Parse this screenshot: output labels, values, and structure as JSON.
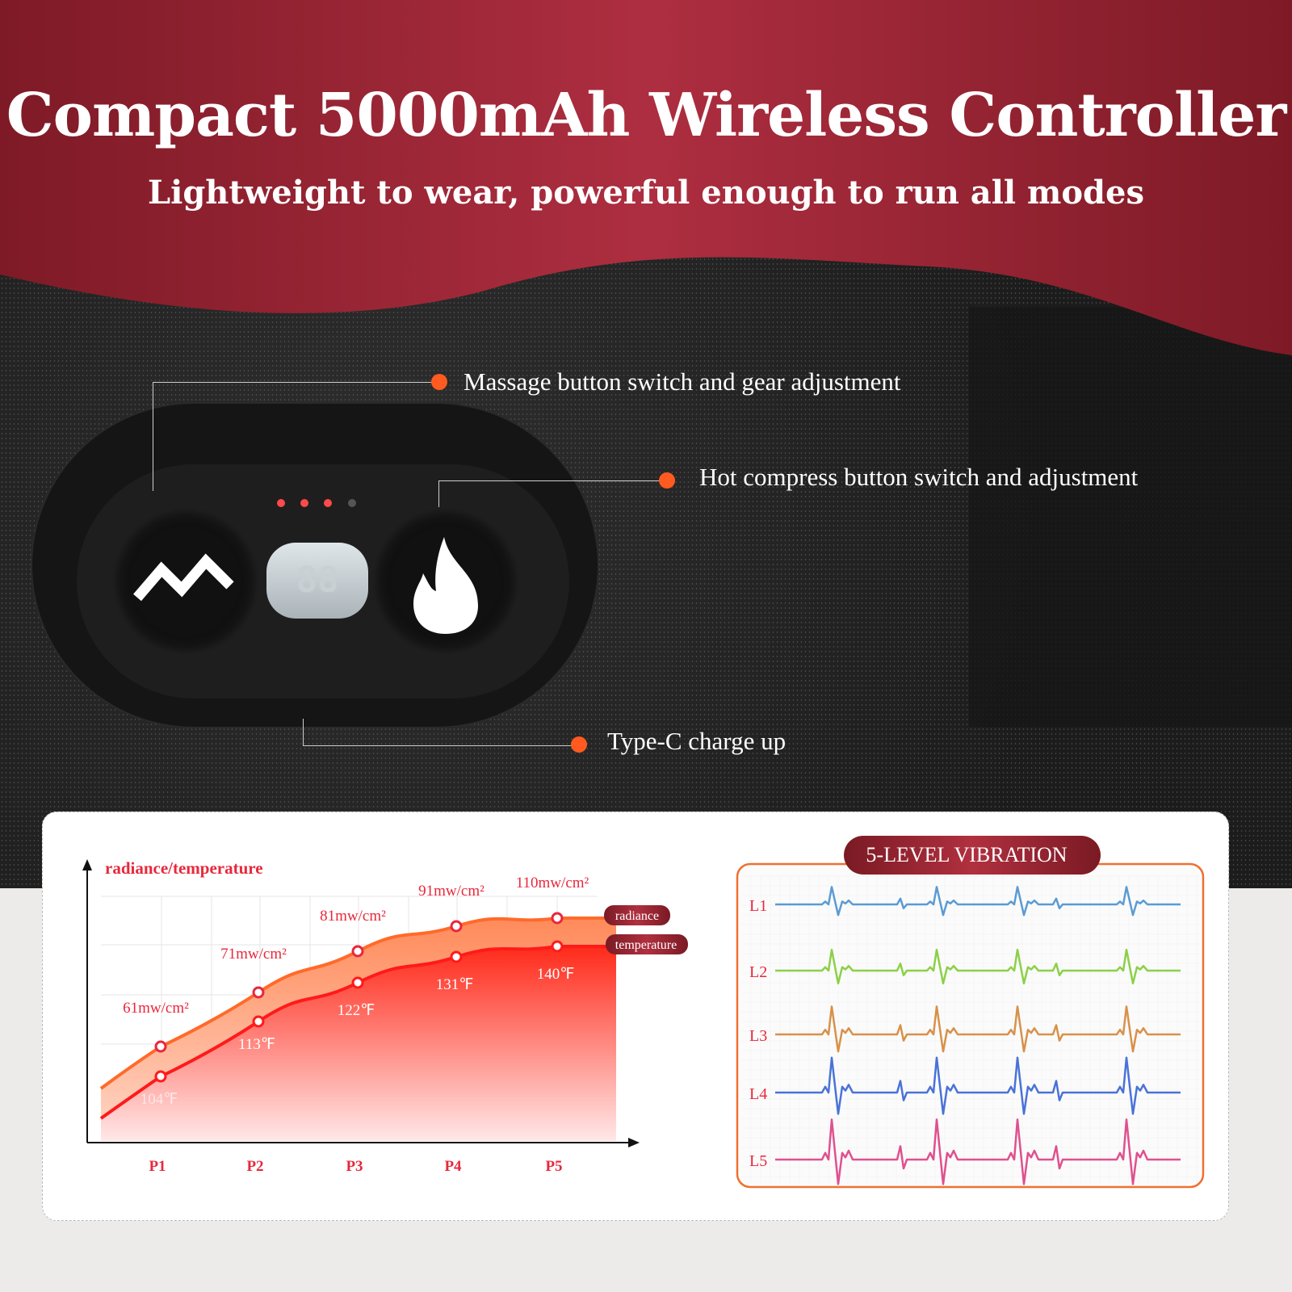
{
  "header": {
    "title": "Compact 5000mAh Wireless Controller",
    "subtitle": "Lightweight to wear, powerful enough to run all modes"
  },
  "colors": {
    "banner": "#a52a3a",
    "accent": "#ff5a1f",
    "label_red": "#e8283c",
    "pill": "#8a1f2c"
  },
  "controller": {
    "display": "88",
    "leds": [
      "on",
      "on",
      "on",
      "off"
    ],
    "left_icon": "wave-icon",
    "right_icon": "flame-icon"
  },
  "callouts": {
    "massage": "Massage button switch and gear adjustment",
    "hot": "Hot compress button switch and adjustment",
    "typec": "Type-C charge up"
  },
  "chart_data": {
    "type": "line",
    "ylabel": "radiance/temperature",
    "categories": [
      "P1",
      "P2",
      "P3",
      "P4",
      "P5"
    ],
    "series": [
      {
        "name": "radiance",
        "values": [
          61,
          71,
          81,
          91,
          110
        ],
        "labels": [
          "61mw/cm²",
          "71mw/cm²",
          "81mw/cm²",
          "91mw/cm²",
          "110mw/cm²"
        ],
        "color": "#ff6a2a"
      },
      {
        "name": "temperature",
        "values": [
          104,
          113,
          122,
          131,
          140
        ],
        "labels": [
          "104℉",
          "113℉",
          "122℉",
          "131℉",
          "140℉"
        ],
        "color": "#ff1a1a"
      }
    ],
    "grid": true
  },
  "vibration": {
    "title": "5-LEVEL VIBRATION",
    "levels": [
      {
        "label": "L1",
        "color": "#5b9bd5",
        "amplitude": 1
      },
      {
        "label": "L2",
        "color": "#8cd048",
        "amplitude": 1.2
      },
      {
        "label": "L3",
        "color": "#d8914a",
        "amplitude": 1.6
      },
      {
        "label": "L4",
        "color": "#4a72d8",
        "amplitude": 2
      },
      {
        "label": "L5",
        "color": "#e0508e",
        "amplitude": 2.3
      }
    ]
  }
}
